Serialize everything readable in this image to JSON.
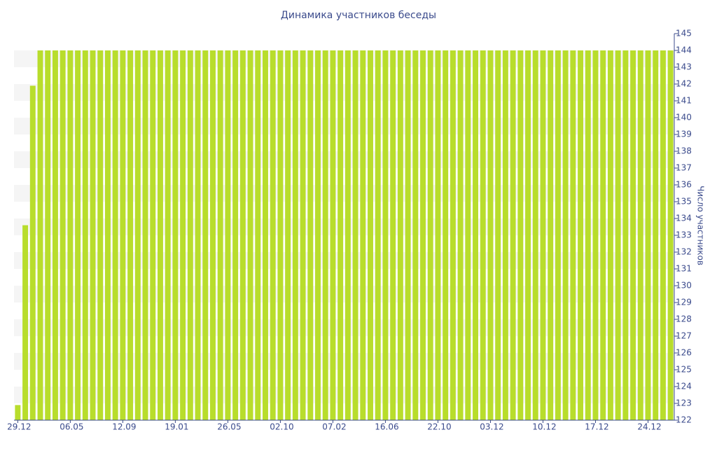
{
  "chart_data": {
    "type": "bar",
    "title": "Динамика участников беседы",
    "y_label": "Число участников",
    "color": "#b8dd2c",
    "categories": [
      "29.12",
      null,
      null,
      null,
      null,
      null,
      null,
      "06.05",
      null,
      null,
      null,
      null,
      null,
      null,
      "12.09",
      null,
      null,
      null,
      null,
      null,
      null,
      "19.01",
      null,
      null,
      null,
      null,
      null,
      null,
      "26.05",
      null,
      null,
      null,
      null,
      null,
      null,
      "02.10",
      null,
      null,
      null,
      null,
      null,
      null,
      "07.02",
      null,
      null,
      null,
      null,
      null,
      null,
      "16.06",
      null,
      null,
      null,
      null,
      null,
      null,
      "22.10",
      null,
      null,
      null,
      null,
      null,
      null,
      "03.12",
      null,
      null,
      null,
      null,
      null,
      null,
      "10.12",
      null,
      null,
      null,
      null,
      null,
      null,
      "17.12",
      null,
      null,
      null,
      null,
      null,
      null,
      "24.12",
      null,
      null,
      null
    ],
    "values": [
      122.9,
      133.6,
      141.9,
      144,
      144,
      144,
      144,
      144,
      144,
      144,
      144,
      144,
      144,
      144,
      144,
      144,
      144,
      144,
      144,
      144,
      144,
      144,
      144,
      144,
      144,
      144,
      144,
      144,
      144,
      144,
      144,
      144,
      144,
      144,
      144,
      144,
      144,
      144,
      144,
      144,
      144,
      144,
      144,
      144,
      144,
      144,
      144,
      144,
      144,
      144,
      144,
      144,
      144,
      144,
      144,
      144,
      144,
      144,
      144,
      144,
      144,
      144,
      144,
      144,
      144,
      144,
      144,
      144,
      144,
      144,
      144,
      144,
      144,
      144,
      144,
      144,
      144,
      144,
      144,
      144,
      144,
      144,
      144,
      144,
      144,
      144,
      144,
      144
    ],
    "ylim": [
      122,
      145
    ],
    "yticks": [
      122,
      123,
      124,
      125,
      126,
      127,
      128,
      129,
      130,
      131,
      132,
      133,
      134,
      135,
      136,
      137,
      138,
      139,
      140,
      141,
      142,
      143,
      144,
      145
    ],
    "y_axis_side": "right",
    "striped_background": true
  }
}
